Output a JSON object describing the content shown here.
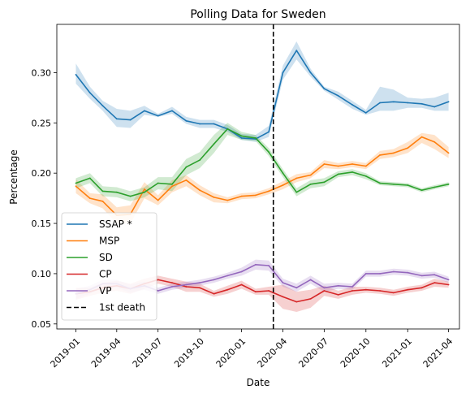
{
  "chart_data": {
    "type": "line",
    "title": "Polling Data for Sweden",
    "xlabel": "Date",
    "ylabel": "Percentage",
    "xlim": [
      "2018-11-20",
      "2021-04-25"
    ],
    "ylim": [
      0.045,
      0.348
    ],
    "x_ticks": [
      {
        "date": "2019-01-01",
        "label": "2019-01"
      },
      {
        "date": "2019-04-01",
        "label": "2019-04"
      },
      {
        "date": "2019-07-01",
        "label": "2019-07"
      },
      {
        "date": "2019-10-01",
        "label": "2019-10"
      },
      {
        "date": "2020-01-01",
        "label": "2020-01"
      },
      {
        "date": "2020-04-01",
        "label": "2020-04"
      },
      {
        "date": "2020-07-01",
        "label": "2020-07"
      },
      {
        "date": "2020-10-01",
        "label": "2020-10"
      },
      {
        "date": "2021-01-01",
        "label": "2021-01"
      },
      {
        "date": "2021-04-01",
        "label": "2021-04"
      }
    ],
    "y_ticks": [
      {
        "value": 0.05,
        "label": "0.05"
      },
      {
        "value": 0.1,
        "label": "0.10"
      },
      {
        "value": 0.15,
        "label": "0.15"
      },
      {
        "value": 0.2,
        "label": "0.20"
      },
      {
        "value": 0.25,
        "label": "0.25"
      },
      {
        "value": 0.3,
        "label": "0.30"
      }
    ],
    "x": [
      "2019-01-01",
      "2019-02-01",
      "2019-03-01",
      "2019-04-01",
      "2019-05-01",
      "2019-06-01",
      "2019-07-01",
      "2019-08-01",
      "2019-09-01",
      "2019-10-01",
      "2019-11-01",
      "2019-12-01",
      "2020-01-01",
      "2020-02-01",
      "2020-03-01",
      "2020-04-01",
      "2020-05-01",
      "2020-06-01",
      "2020-07-01",
      "2020-08-01",
      "2020-09-01",
      "2020-10-01",
      "2020-11-01",
      "2020-12-01",
      "2021-01-01",
      "2021-02-01",
      "2021-03-01",
      "2021-04-01"
    ],
    "series": [
      {
        "name": "SSAP *",
        "color": "#1f77b4",
        "values": [
          0.298,
          0.28,
          0.267,
          0.254,
          0.253,
          0.262,
          0.257,
          0.262,
          0.252,
          0.249,
          0.249,
          0.244,
          0.235,
          0.234,
          0.241,
          0.3,
          0.322,
          0.3,
          0.284,
          0.277,
          0.268,
          0.26,
          0.27,
          0.271,
          0.27,
          0.269,
          0.266,
          0.271
        ],
        "lower": [
          0.289,
          0.274,
          0.262,
          0.246,
          0.245,
          0.258,
          0.256,
          0.259,
          0.249,
          0.245,
          0.245,
          0.241,
          0.233,
          0.231,
          0.236,
          0.293,
          0.313,
          0.296,
          0.282,
          0.273,
          0.264,
          0.258,
          0.262,
          0.262,
          0.265,
          0.265,
          0.262,
          0.262
        ],
        "upper": [
          0.309,
          0.286,
          0.272,
          0.264,
          0.262,
          0.267,
          0.259,
          0.266,
          0.256,
          0.253,
          0.253,
          0.248,
          0.239,
          0.238,
          0.247,
          0.307,
          0.331,
          0.304,
          0.286,
          0.281,
          0.272,
          0.263,
          0.286,
          0.283,
          0.275,
          0.274,
          0.275,
          0.28
        ]
      },
      {
        "name": "MSP",
        "color": "#ff7f0e",
        "values": [
          0.187,
          0.175,
          0.172,
          0.158,
          0.159,
          0.184,
          0.173,
          0.187,
          0.193,
          0.183,
          0.176,
          0.173,
          0.177,
          0.178,
          0.182,
          0.188,
          0.195,
          0.198,
          0.209,
          0.207,
          0.209,
          0.207,
          0.218,
          0.22,
          0.225,
          0.236,
          0.231,
          0.22
        ],
        "lower": [
          0.18,
          0.17,
          0.165,
          0.15,
          0.15,
          0.175,
          0.168,
          0.181,
          0.187,
          0.178,
          0.171,
          0.17,
          0.174,
          0.175,
          0.179,
          0.184,
          0.191,
          0.195,
          0.205,
          0.204,
          0.206,
          0.204,
          0.214,
          0.216,
          0.22,
          0.23,
          0.224,
          0.215
        ],
        "upper": [
          0.194,
          0.18,
          0.179,
          0.166,
          0.168,
          0.191,
          0.178,
          0.193,
          0.198,
          0.188,
          0.18,
          0.176,
          0.18,
          0.181,
          0.185,
          0.192,
          0.199,
          0.201,
          0.213,
          0.21,
          0.212,
          0.21,
          0.222,
          0.224,
          0.231,
          0.24,
          0.238,
          0.226
        ]
      },
      {
        "name": "SD",
        "color": "#2ca02c",
        "values": [
          0.19,
          0.195,
          0.182,
          0.181,
          0.177,
          0.181,
          0.19,
          0.189,
          0.206,
          0.213,
          0.229,
          0.244,
          0.237,
          0.235,
          0.221,
          0.2,
          0.181,
          0.189,
          0.191,
          0.199,
          0.201,
          0.197,
          0.19,
          0.189,
          0.188,
          0.183,
          0.186,
          0.189
        ],
        "lower": [
          0.185,
          0.19,
          0.177,
          0.176,
          0.172,
          0.176,
          0.184,
          0.182,
          0.198,
          0.205,
          0.22,
          0.238,
          0.233,
          0.232,
          0.217,
          0.196,
          0.177,
          0.185,
          0.187,
          0.196,
          0.198,
          0.194,
          0.188,
          0.187,
          0.186,
          0.181,
          0.184,
          0.187
        ],
        "upper": [
          0.195,
          0.2,
          0.187,
          0.186,
          0.182,
          0.186,
          0.196,
          0.196,
          0.214,
          0.221,
          0.238,
          0.25,
          0.241,
          0.238,
          0.225,
          0.204,
          0.185,
          0.193,
          0.195,
          0.202,
          0.204,
          0.2,
          0.192,
          0.191,
          0.19,
          0.185,
          0.188,
          0.191
        ]
      },
      {
        "name": "CP",
        "color": "#d62728",
        "values": [
          0.08,
          0.082,
          0.086,
          0.088,
          0.085,
          0.09,
          0.094,
          0.091,
          0.087,
          0.086,
          0.08,
          0.084,
          0.089,
          0.082,
          0.083,
          0.077,
          0.072,
          0.075,
          0.083,
          0.079,
          0.083,
          0.084,
          0.083,
          0.081,
          0.084,
          0.086,
          0.091,
          0.089
        ],
        "lower": [
          0.074,
          0.078,
          0.081,
          0.083,
          0.08,
          0.085,
          0.09,
          0.087,
          0.082,
          0.082,
          0.077,
          0.08,
          0.085,
          0.079,
          0.079,
          0.065,
          0.062,
          0.066,
          0.078,
          0.075,
          0.079,
          0.081,
          0.08,
          0.078,
          0.081,
          0.083,
          0.087,
          0.086
        ],
        "upper": [
          0.086,
          0.086,
          0.091,
          0.093,
          0.09,
          0.095,
          0.098,
          0.095,
          0.092,
          0.09,
          0.083,
          0.088,
          0.093,
          0.085,
          0.087,
          0.089,
          0.082,
          0.084,
          0.088,
          0.083,
          0.087,
          0.087,
          0.086,
          0.084,
          0.087,
          0.089,
          0.095,
          0.092
        ]
      },
      {
        "name": "VP",
        "color": "#9467bd",
        "values": [
          0.08,
          0.084,
          0.09,
          0.09,
          0.085,
          0.088,
          0.083,
          0.087,
          0.089,
          0.091,
          0.094,
          0.098,
          0.102,
          0.109,
          0.108,
          0.091,
          0.086,
          0.094,
          0.086,
          0.088,
          0.087,
          0.1,
          0.1,
          0.102,
          0.101,
          0.098,
          0.099,
          0.094
        ],
        "lower": [
          0.075,
          0.08,
          0.086,
          0.086,
          0.081,
          0.084,
          0.08,
          0.084,
          0.086,
          0.088,
          0.091,
          0.095,
          0.098,
          0.104,
          0.103,
          0.087,
          0.082,
          0.09,
          0.082,
          0.085,
          0.084,
          0.097,
          0.097,
          0.099,
          0.098,
          0.095,
          0.096,
          0.091
        ],
        "upper": [
          0.085,
          0.088,
          0.094,
          0.094,
          0.089,
          0.092,
          0.086,
          0.09,
          0.092,
          0.094,
          0.097,
          0.101,
          0.106,
          0.114,
          0.113,
          0.095,
          0.09,
          0.098,
          0.09,
          0.091,
          0.09,
          0.103,
          0.103,
          0.105,
          0.104,
          0.101,
          0.102,
          0.097
        ]
      }
    ],
    "annotations": [
      {
        "type": "vline",
        "date": "2020-03-11",
        "label": "1st death",
        "color": "#000000",
        "style": "dashed"
      }
    ],
    "legend": {
      "placement": "lower-left"
    },
    "grid": false
  }
}
